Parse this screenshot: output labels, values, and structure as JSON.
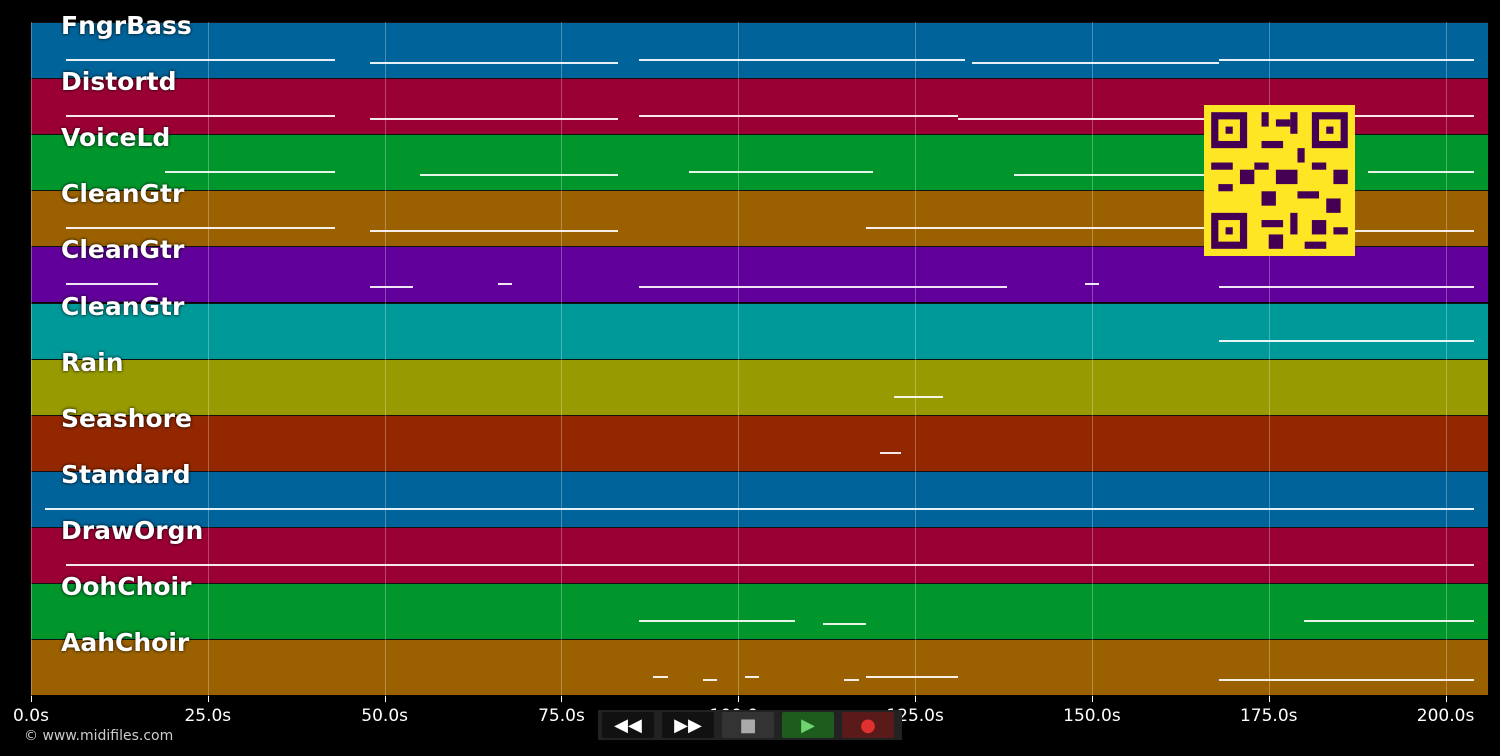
{
  "tracks": [
    {
      "name": "FngrBass",
      "color": "#00639a"
    },
    {
      "name": "Distortd",
      "color": "#9b0035"
    },
    {
      "name": "VoiceLd",
      "color": "#00962c"
    },
    {
      "name": "CleanGtr",
      "color": "#9b6100"
    },
    {
      "name": "CleanGtr",
      "color": "#62009b"
    },
    {
      "name": "CleanGtr",
      "color": "#00999a"
    },
    {
      "name": "Rain",
      "color": "#979a00"
    },
    {
      "name": "Seashore",
      "color": "#922700"
    },
    {
      "name": "Standard",
      "color": "#00639a"
    },
    {
      "name": "DrawOrgn",
      "color": "#9b0035"
    },
    {
      "name": "OohChoir",
      "color": "#00962c"
    },
    {
      "name": "AahChoir",
      "color": "#9b6100"
    }
  ],
  "axis": {
    "max_seconds": 206,
    "ticks": [
      "0.0s",
      "25.0s",
      "50.0s",
      "75.0s",
      "100.0s",
      "125.0s",
      "150.0s",
      "175.0s",
      "200.0s"
    ],
    "tick_values": [
      0,
      25,
      50,
      75,
      100,
      125,
      150,
      175,
      200
    ]
  },
  "copyright": "© www.midifiles.com",
  "transport": [
    {
      "name": "rewind-button",
      "glyph": "◀◀",
      "color": "#111"
    },
    {
      "name": "fast-forward-button",
      "glyph": "▶▶",
      "color": "#111"
    },
    {
      "name": "stop-button",
      "glyph": "■",
      "color": "#333"
    },
    {
      "name": "play-button",
      "glyph": "▶",
      "color": "#1e5c1e"
    },
    {
      "name": "record-button",
      "glyph": "●",
      "color": "#5a1a1a"
    }
  ],
  "note_segments": [
    [
      [
        5,
        43
      ],
      [
        48,
        83
      ],
      [
        86,
        132
      ],
      [
        133,
        168
      ],
      [
        168,
        204
      ]
    ],
    [
      [
        5,
        43
      ],
      [
        48,
        83
      ],
      [
        86,
        131
      ],
      [
        131,
        168
      ],
      [
        186,
        204
      ]
    ],
    [
      [
        19,
        43
      ],
      [
        55,
        83
      ],
      [
        93,
        119
      ],
      [
        139,
        171
      ],
      [
        189,
        204
      ]
    ],
    [
      [
        5,
        43
      ],
      [
        48,
        83
      ],
      [
        118,
        171
      ],
      [
        186,
        204
      ]
    ],
    [
      [
        5,
        18
      ],
      [
        48,
        54
      ],
      [
        66,
        68
      ],
      [
        86,
        138
      ],
      [
        149,
        151
      ],
      [
        168,
        204
      ]
    ],
    [
      [
        168,
        204
      ]
    ],
    [
      [
        122,
        129
      ]
    ],
    [
      [
        120,
        123
      ]
    ],
    [
      [
        2,
        204
      ]
    ],
    [
      [
        5,
        204
      ]
    ],
    [
      [
        86,
        108
      ],
      [
        112,
        118
      ],
      [
        180,
        204
      ]
    ],
    [
      [
        88,
        90
      ],
      [
        95,
        97
      ],
      [
        101,
        103
      ],
      [
        115,
        117
      ],
      [
        118,
        131
      ],
      [
        168,
        204
      ]
    ]
  ]
}
